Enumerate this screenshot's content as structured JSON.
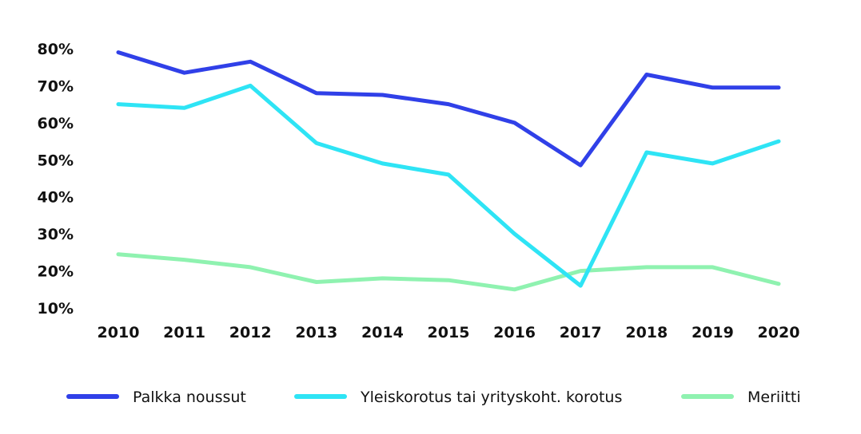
{
  "chart_data": {
    "type": "line",
    "title": "",
    "xlabel": "",
    "ylabel": "",
    "x": [
      "2010",
      "2011",
      "2012",
      "2013",
      "2014",
      "2015",
      "2016",
      "2017",
      "2018",
      "2019",
      "2020"
    ],
    "y_ticks": [
      10,
      20,
      30,
      40,
      50,
      60,
      70,
      80
    ],
    "y_tick_labels": [
      "10%",
      "20%",
      "30%",
      "40%",
      "50%",
      "60%",
      "70%",
      "80%"
    ],
    "ylim": [
      10,
      80
    ],
    "grid": false,
    "legend_position": "bottom",
    "series": [
      {
        "name": "Palkka noussut",
        "color": "#3040e8",
        "values": [
          79,
          73.5,
          76.5,
          68,
          67.5,
          65,
          60,
          48.5,
          73,
          69.5,
          69.5
        ]
      },
      {
        "name": "Yleiskorotus tai yrityskoht. korotus",
        "color": "#2ee4f5",
        "values": [
          65,
          64,
          70,
          54.5,
          49,
          46,
          30,
          16,
          52,
          49,
          55
        ]
      },
      {
        "name": "Meriitti",
        "color": "#8ff2b0",
        "values": [
          24.5,
          23,
          21,
          17,
          18,
          17.5,
          15,
          20,
          21,
          21,
          16.5
        ]
      }
    ]
  }
}
